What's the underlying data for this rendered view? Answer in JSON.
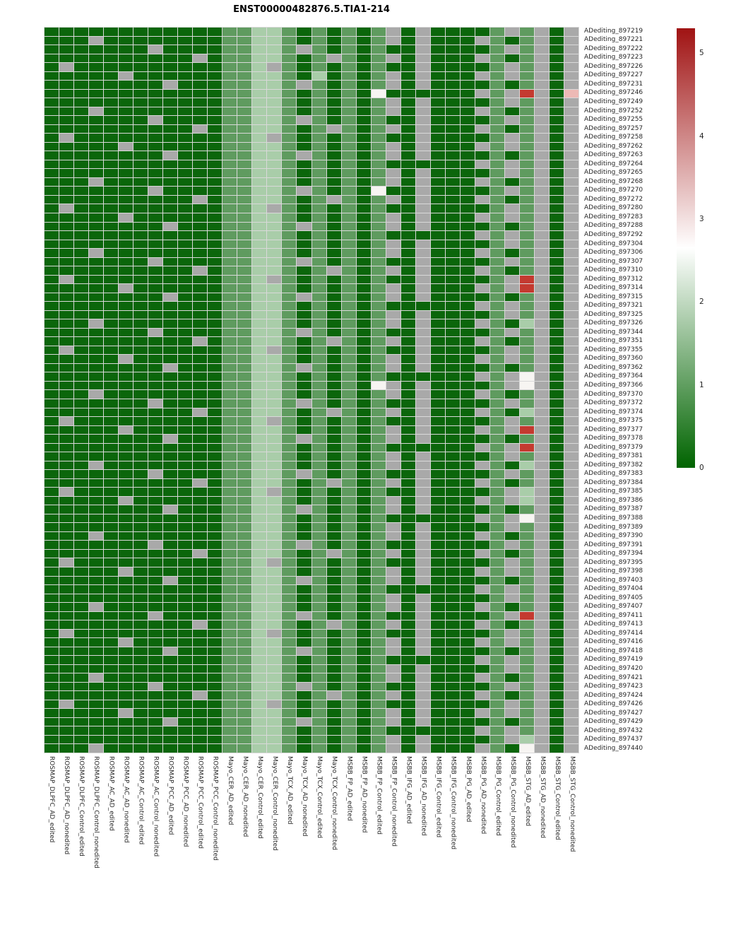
{
  "title": "ENST00000482876.5.TIA1-214",
  "chart_data": {
    "type": "heatmap",
    "title": "ENST00000482876.5.TIA1-214",
    "grid": true,
    "legend_position": "right",
    "legend": {
      "min": 0,
      "max": 5.3,
      "ticks": [
        5,
        4,
        3,
        2,
        1,
        0
      ],
      "low_color": "#006400",
      "mid_color": "#ffffff",
      "high_color": "#a01313",
      "na_color": "#a9a9a9"
    },
    "value_codes": {
      "0": 0.2,
      "1": 1.1,
      "2": 2.0,
      "w": 2.7,
      "p": 3.8,
      "r": 5.1,
      "n": "NA"
    },
    "cell_colors": {
      "0": "#0b660b",
      "1": "#5f9b5f",
      "2": "#a9cda9",
      "w": "#f7f5f2",
      "p": "#edb9b5",
      "r": "#c43a30",
      "n": "#a9a9a9"
    },
    "columns": [
      "ROSMAP_DLPFC_AD_edited",
      "ROSMAP_DLPFC_AD_nonedited",
      "ROSMAP_DLPFC_Control_edited",
      "ROSMAP_DLPFC_Control_nonedited",
      "ROSMAP_AC_AD_edited",
      "ROSMAP_AC_AD_nonedited",
      "ROSMAP_AC_Control_edited",
      "ROSMAP_AC_Control_nonedited",
      "ROSMAP_PCC_AD_edited",
      "ROSMAP_PCC_AD_nonedited",
      "ROSMAP_PCC_Control_edited",
      "ROSMAP_PCC_Control_nonedited",
      "Mayo_CER_AD_edited",
      "Mayo_CER_AD_nonedited",
      "Mayo_CER_Control_edited",
      "Mayo_CER_Control_nonedited",
      "Mayo_TCX_AD_edited",
      "Mayo_TCX_AD_nonedited",
      "Mayo_TCX_Control_edited",
      "Mayo_TCX_Control_nonedited",
      "MSBB_FP_AD_edited",
      "MSBB_FP_AD_nonedited",
      "MSBB_FP_Control_edited",
      "MSBB_FP_Control_nonedited",
      "MSBB_IFG_AD_edited",
      "MSBB_IFG_AD_nonedited",
      "MSBB_IFG_Control_edited",
      "MSBB_IFG_Control_nonedited",
      "MSBB_PG_AD_edited",
      "MSBB_PG_AD_nonedited",
      "MSBB_PG_Control_edited",
      "MSBB_PG_Control_nonedited",
      "MSBB_STG_AD_edited",
      "MSBB_STG_AD_nonedited",
      "MSBB_STG_Control_edited",
      "MSBB_STG_Control_nonedited"
    ],
    "rows": [
      "ADediting_897219",
      "ADediting_897221",
      "ADediting_897222",
      "ADediting_897223",
      "ADediting_897226",
      "ADediting_897227",
      "ADediting_897231",
      "ADediting_897246",
      "ADediting_897249",
      "ADediting_897252",
      "ADediting_897255",
      "ADediting_897257",
      "ADediting_897258",
      "ADediting_897262",
      "ADediting_897263",
      "ADediting_897264",
      "ADediting_897265",
      "ADediting_897268",
      "ADediting_897270",
      "ADediting_897272",
      "ADediting_897280",
      "ADediting_897283",
      "ADediting_897288",
      "ADediting_897292",
      "ADediting_897304",
      "ADediting_897306",
      "ADediting_897307",
      "ADediting_897310",
      "ADediting_897312",
      "ADediting_897314",
      "ADediting_897315",
      "ADediting_897321",
      "ADediting_897325",
      "ADediting_897326",
      "ADediting_897344",
      "ADediting_897351",
      "ADediting_897355",
      "ADediting_897360",
      "ADediting_897362",
      "ADediting_897364",
      "ADediting_897366",
      "ADediting_897370",
      "ADediting_897372",
      "ADediting_897374",
      "ADediting_897375",
      "ADediting_897377",
      "ADediting_897378",
      "ADediting_897379",
      "ADediting_897381",
      "ADediting_897382",
      "ADediting_897383",
      "ADediting_897384",
      "ADediting_897385",
      "ADediting_897386",
      "ADediting_897387",
      "ADediting_897388",
      "ADediting_897389",
      "ADediting_897390",
      "ADediting_897391",
      "ADediting_897394",
      "ADediting_897395",
      "ADediting_897398",
      "ADediting_897403",
      "ADediting_897404",
      "ADediting_897405",
      "ADediting_897407",
      "ADediting_897411",
      "ADediting_897413",
      "ADediting_897414",
      "ADediting_897416",
      "ADediting_897418",
      "ADediting_897419",
      "ADediting_897420",
      "ADediting_897421",
      "ADediting_897423",
      "ADediting_897424",
      "ADediting_897426",
      "ADediting_897427",
      "ADediting_897429",
      "ADediting_897432",
      "ADediting_897437",
      "ADediting_897440"
    ],
    "matrix": [
      "00000000000011221010101n0n00001n1n0n",
      "000n0000000011221010101n0n000n101n0n",
      "0000000n000011221n1010100n00001n1n0n",
      "0000000000n01122101n101n0n000n101n0n",
      "0n0000000000112n101010100n00001n1n0n",
      "00000n00000011221020101n0n000n1n1n0n",
      "00000000n00011221n10101n0n0000101n0n",
      "0000000000001122101010w000000n1nrn0p",
      "00000000000011221010101n0n00001n1n0n",
      "000n0000000011221010101n0n000n101n0n",
      "0000000n000011221n1010100n00001n1n0n",
      "0000000000n01122101n101n0n000n101n0n",
      "0n0000000000112n101010100n00001n1n0n",
      "00000n00000011221010101n0n000n1n1n0n",
      "00000000n00011221n10101n0n0000101n0n",
      "00000000000011221010101000000n1n1n0n",
      "00000000000011221010101n0n00001n1n0n",
      "000n0000000011221010101n0n000n101n0n",
      "0000000n000011221n1010w00n00001n1n0n",
      "0000000000n01122101n101n0n000n101n0n",
      "0n0000000000112n101010100n00001n1n0n",
      "00000n00000011221010101n0n000n1n1n0n",
      "00000000n00011221n10101n0n0000101n0n",
      "00000000000011221010101000000n1n1n0n",
      "00000000000011221010101n0n00001n1n0n",
      "000n0000000011221010101n0n000n101n0n",
      "0000000n000011221n1010100n00001n1n0n",
      "0000000000n01122101n101n0n000n101n0n",
      "0n0000000000112n101010100n00001nrn0n",
      "00000n00000011221010101n0n000n1nrn0n",
      "00000000n00011221n10101n0n0000101n0n",
      "00000000000011221010101000000n1n1n0n",
      "00000000000011221010101n0n00001n1n0n",
      "000n0000000011221010101n0n000n102n0n",
      "0000000n000011221n1010100n00001n1n0n",
      "0000000000n01122101n101n0n000n101n0n",
      "0n0000000000112n101010100n00001n1n0n",
      "00000n00000011221010101n0n000n1n1n0n",
      "00000000n00011221n10101n0n0000101n0n",
      "00000000000011221010101000000n1nwn0n",
      "0000000000001122101010wn0n00001nwn0n",
      "000n0000000011221010101n0n000n101n0n",
      "0000000n000011221n1010100n00001n1n0n",
      "0000000000n01122101n101n0n000n102n0n",
      "0n0000000000112n101010100n00001n1n0n",
      "00000n00000011221010101n0n000n1nrn0n",
      "00000000n00011221n10101n0n0000101n0n",
      "00000000000011221010101000000n1nrn0n",
      "00000000000011221010101n0n00001n1n0n",
      "000n0000000011221010101n0n000n102n0n",
      "0000000n000011221n1010100n00001n1n0n",
      "0000000000n01122101n101n0n000n101n0n",
      "0n0000000000112n101010100n00001n2n0n",
      "00000n00000011221010101n0n000n1n2n0n",
      "00000000n00011221n10101n0n0000101n0n",
      "00000000000011221010101000000n1nwn0n",
      "00000000000011221010101n0n00001n1n0n",
      "000n0000000011221010101n0n000n101n0n",
      "0000000n000011221n1010100n00001n1n0n",
      "0000000000n01122101n101n0n000n101n0n",
      "0n0000000000112n101010100n00001n1n0n",
      "00000n00000011221010101n0n000n1n1n0n",
      "00000000n00011221n10101n0n0000101n0n",
      "00000000000011221010101000000n1n1n0n",
      "00000000000011221010101n0n00001n1n0n",
      "000n0000000011221010101n0n000n101n0n",
      "0000000n000011221n1010100n00001nrn0n",
      "0000000000n01122101n101n0n000n101n0n",
      "0n0000000000112n101010100n00001n1n0n",
      "00000n00000011221010101n0n000n1n1n0n",
      "00000000n00011221n10101n0n0000101n0n",
      "00000000000011221010101000000n1n1n0n",
      "00000000000011221010101n0n00001n1n0n",
      "000n0000000011221010101n0n000n101n0n",
      "0000000n000011221n1010100n00001n1n0n",
      "0000000000n01122101n101n0n000n101n0n",
      "0n0000000000112n101010100n00001n1n0n",
      "00000n00000011221010101n0n000n1n1n0n",
      "00000000n00011221n10101n0n0000101n0n",
      "00000000000011221010101000000n1n1n0n",
      "00000000000011221010101n0n00001n2n0n",
      "000n0000000011221010101n0n000n10wn0n"
    ]
  }
}
